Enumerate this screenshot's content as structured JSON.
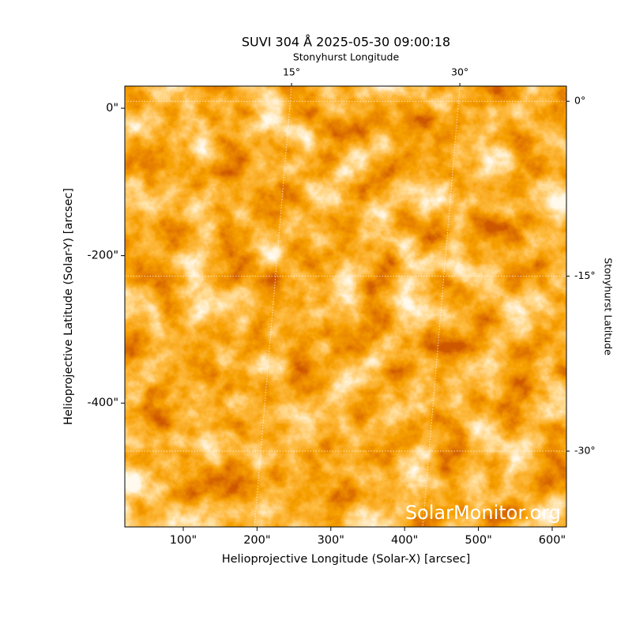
{
  "chart_data": {
    "type": "image",
    "title": "SUVI 304 Å 2025-05-30 09:00:18",
    "xlabel": "Helioprojective Longitude (Solar-X) [arcsec]",
    "ylabel": "Helioprojective Latitude (Solar-Y) [arcsec]",
    "x2label": "Stonyhurst Longitude",
    "y2label": "Stonyhurst Latitude",
    "watermark": "SolarMonitor.org",
    "xlim": [
      20.8,
      619.3
    ],
    "ylim": [
      -568,
      30
    ],
    "xticks": [
      {
        "value": 100,
        "label": "100\""
      },
      {
        "value": 200,
        "label": "200\""
      },
      {
        "value": 300,
        "label": "300\""
      },
      {
        "value": 400,
        "label": "400\""
      },
      {
        "value": 500,
        "label": "500\""
      },
      {
        "value": 600,
        "label": "600\""
      }
    ],
    "yticks": [
      {
        "value": 0,
        "label": "0\""
      },
      {
        "value": -200,
        "label": "-200\""
      },
      {
        "value": -400,
        "label": "-400\""
      }
    ],
    "x2lim": [
      0.14,
      39.5
    ],
    "x2ticks": [
      {
        "value": 15,
        "label": "15°"
      },
      {
        "value": 30,
        "label": "30°"
      }
    ],
    "y2lim": [
      -36.5,
      1.3
    ],
    "y2ticks": [
      {
        "value": 0,
        "label": "0°"
      },
      {
        "value": -15,
        "label": "-15°"
      },
      {
        "value": -30,
        "label": "-30°"
      }
    ],
    "grid": true
  }
}
